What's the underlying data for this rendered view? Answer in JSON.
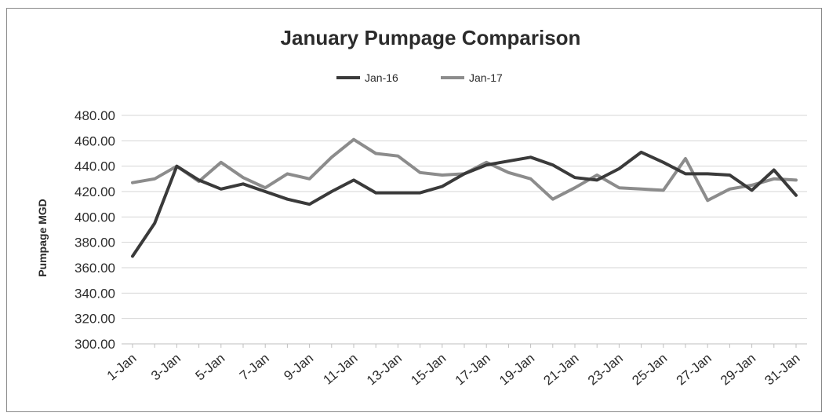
{
  "chart_data": {
    "type": "line",
    "title": "January Pumpage Comparison",
    "ylabel": "Pumpage MGD",
    "xlabel": "",
    "ylim": [
      300,
      480
    ],
    "ytick_step": 20,
    "ytick_labels": [
      "300.00",
      "320.00",
      "340.00",
      "360.00",
      "380.00",
      "400.00",
      "420.00",
      "440.00",
      "460.00",
      "480.00"
    ],
    "x": [
      "1-Jan",
      "2-Jan",
      "3-Jan",
      "4-Jan",
      "5-Jan",
      "6-Jan",
      "7-Jan",
      "8-Jan",
      "9-Jan",
      "10-Jan",
      "11-Jan",
      "12-Jan",
      "13-Jan",
      "14-Jan",
      "15-Jan",
      "16-Jan",
      "17-Jan",
      "18-Jan",
      "19-Jan",
      "20-Jan",
      "21-Jan",
      "22-Jan",
      "23-Jan",
      "24-Jan",
      "25-Jan",
      "26-Jan",
      "27-Jan",
      "28-Jan",
      "29-Jan",
      "30-Jan",
      "31-Jan"
    ],
    "x_tick_labels": [
      "1-Jan",
      "3-Jan",
      "5-Jan",
      "7-Jan",
      "9-Jan",
      "11-Jan",
      "13-Jan",
      "15-Jan",
      "17-Jan",
      "19-Jan",
      "21-Jan",
      "23-Jan",
      "25-Jan",
      "27-Jan",
      "29-Jan",
      "31-Jan"
    ],
    "grid": true,
    "legend_position": "top-center",
    "series": [
      {
        "name": "Jan-16",
        "color": "#3a3a3a",
        "values": [
          369,
          395,
          440,
          429,
          422,
          426,
          420,
          414,
          410,
          420,
          429,
          419,
          419,
          419,
          424,
          434,
          441,
          444,
          447,
          441,
          431,
          429,
          438,
          451,
          443,
          434,
          434,
          433,
          421,
          437,
          417
        ]
      },
      {
        "name": "Jan-17",
        "color": "#8c8c8c",
        "values": [
          427,
          430,
          440,
          428,
          443,
          431,
          423,
          434,
          430,
          447,
          461,
          450,
          448,
          435,
          433,
          434,
          443,
          435,
          430,
          414,
          423,
          433,
          423,
          422,
          421,
          446,
          413,
          422,
          425,
          430,
          429
        ]
      }
    ]
  }
}
